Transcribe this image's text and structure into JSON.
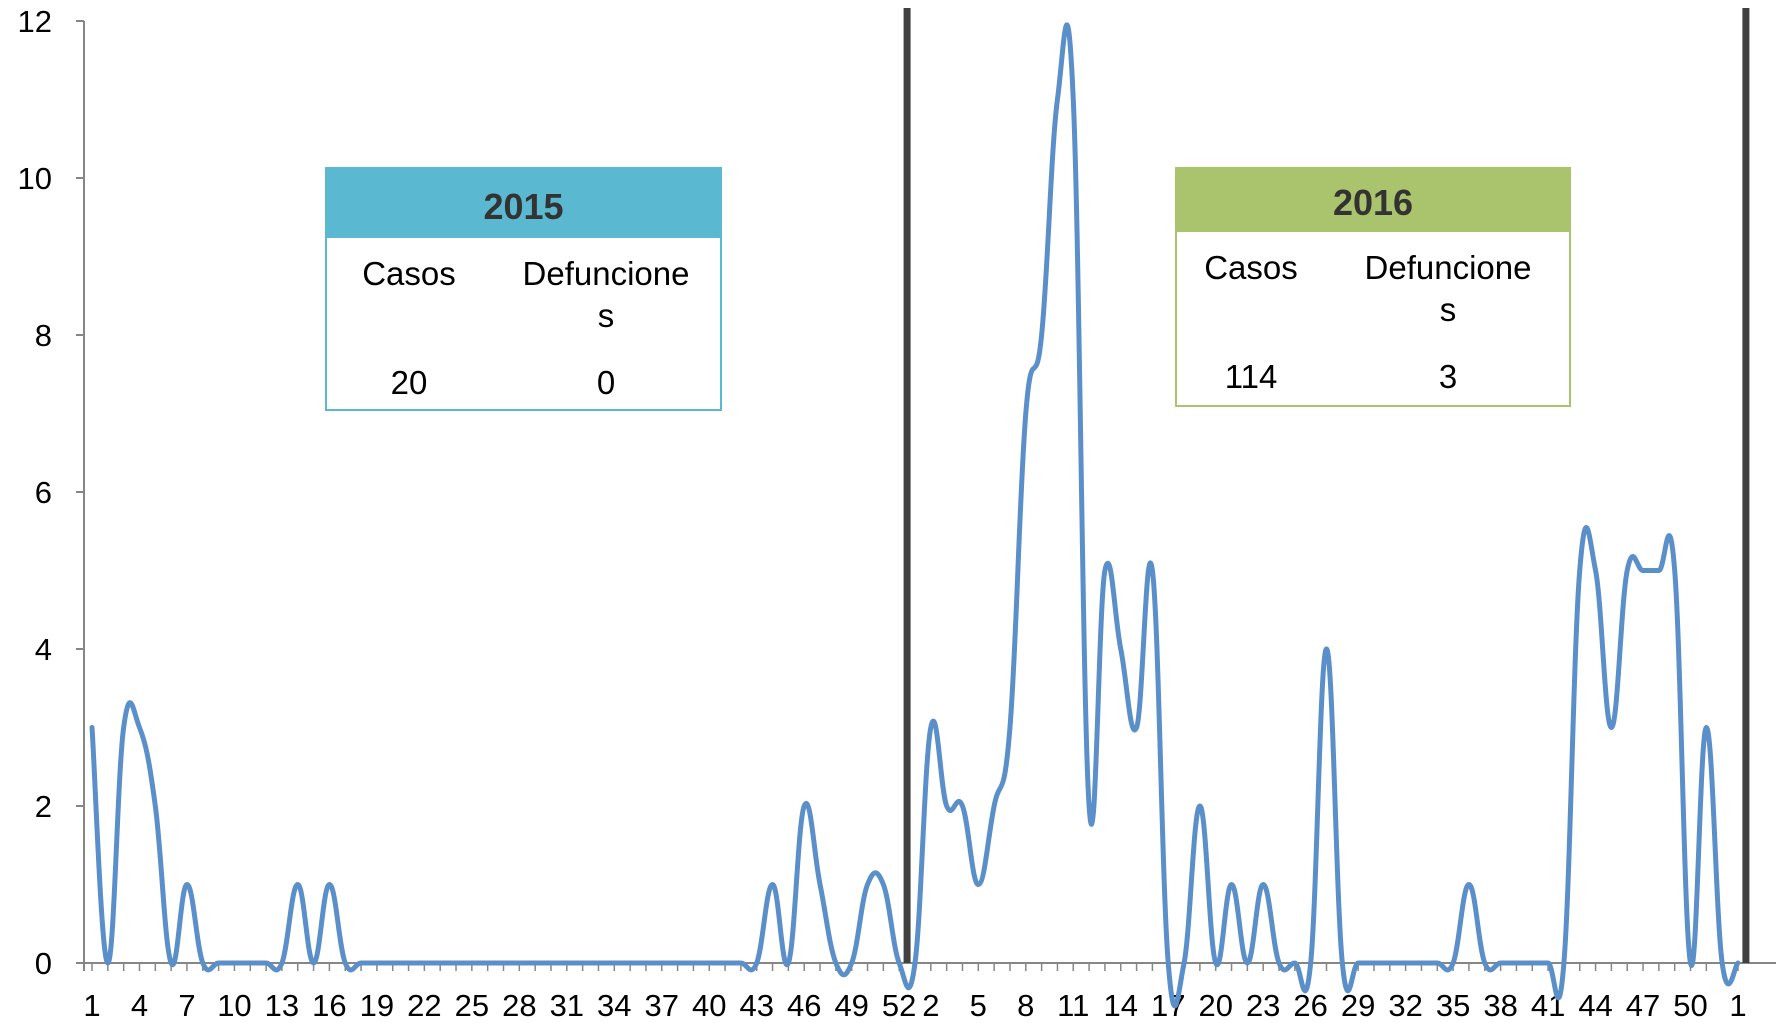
{
  "chart_data": {
    "type": "line",
    "smooth": true,
    "title": "",
    "xlabel": "",
    "ylabel": "",
    "ylim": [
      0,
      12
    ],
    "yticks": [
      0,
      2,
      4,
      6,
      8,
      10,
      12
    ],
    "grid": false,
    "line_color": "#5b8fc9",
    "x": [
      "1",
      "2",
      "3",
      "4",
      "5",
      "6",
      "7",
      "8",
      "9",
      "10",
      "11",
      "12",
      "13",
      "14",
      "15",
      "16",
      "17",
      "18",
      "19",
      "20",
      "21",
      "22",
      "23",
      "24",
      "25",
      "26",
      "27",
      "28",
      "29",
      "30",
      "31",
      "32",
      "33",
      "34",
      "35",
      "36",
      "37",
      "38",
      "39",
      "40",
      "41",
      "42",
      "43",
      "44",
      "45",
      "46",
      "47",
      "48",
      "49",
      "50",
      "51",
      "52",
      "1",
      "2",
      "3",
      "4",
      "5",
      "6",
      "7",
      "8",
      "9",
      "10",
      "11",
      "12",
      "13",
      "14",
      "15",
      "16",
      "17",
      "18",
      "19",
      "20",
      "21",
      "22",
      "23",
      "24",
      "25",
      "26",
      "27",
      "28",
      "29",
      "30",
      "31",
      "32",
      "33",
      "34",
      "35",
      "36",
      "37",
      "38",
      "39",
      "40",
      "41",
      "42",
      "43",
      "44",
      "45",
      "46",
      "47",
      "48",
      "49",
      "50",
      "51",
      "52",
      "1"
    ],
    "x_tick_labels": [
      "1",
      "4",
      "7",
      "10",
      "13",
      "16",
      "19",
      "22",
      "25",
      "28",
      "31",
      "34",
      "37",
      "40",
      "43",
      "46",
      "49",
      "52",
      "2",
      "5",
      "8",
      "11",
      "14",
      "17",
      "20",
      "23",
      "26",
      "29",
      "32",
      "35",
      "38",
      "41",
      "44",
      "47",
      "50",
      "1"
    ],
    "x_tick_label_indices": [
      0,
      3,
      6,
      9,
      12,
      15,
      18,
      21,
      24,
      27,
      30,
      33,
      36,
      39,
      42,
      45,
      48,
      51,
      53,
      56,
      59,
      62,
      65,
      68,
      71,
      74,
      77,
      80,
      83,
      86,
      89,
      92,
      95,
      98,
      101,
      104
    ],
    "series": [
      {
        "values": [
          3,
          0,
          3,
          3,
          2,
          0,
          1,
          0,
          0,
          0,
          0,
          0,
          0,
          1,
          0,
          1,
          0,
          0,
          0,
          0,
          0,
          0,
          0,
          0,
          0,
          0,
          0,
          0,
          0,
          0,
          0,
          0,
          0,
          0,
          0,
          0,
          0,
          0,
          0,
          0,
          0,
          0,
          0,
          1,
          0,
          2,
          1,
          0,
          0,
          1,
          1,
          0,
          0,
          3,
          2,
          2,
          1,
          2,
          3,
          7,
          8,
          11,
          11,
          2,
          5,
          4,
          3,
          5,
          0,
          0,
          2,
          0,
          1,
          0,
          1,
          0,
          0,
          0,
          4,
          0,
          0,
          0,
          0,
          0,
          0,
          0,
          0,
          1,
          0,
          0,
          0,
          0,
          0,
          0,
          5,
          5,
          3,
          5,
          5,
          5,
          5,
          0,
          3,
          0,
          0
        ]
      }
    ],
    "separators_at_x_index": [
      52,
      105
    ],
    "separator_color": "#404040",
    "annotations": [
      {
        "title": "2015",
        "header_color": "#5bb8d1",
        "border_color": "#5bb8d1",
        "col1_label": "Casos",
        "col2_label_line1": "Defuncione",
        "col2_label_line2": "s",
        "col1_value": "20",
        "col2_value": "0"
      },
      {
        "title": "2016",
        "header_color": "#a9c46c",
        "border_color": "#a9c46c",
        "col1_label": "Casos",
        "col2_label_line1": "Defuncione",
        "col2_label_line2": "s",
        "col1_value": "114",
        "col2_value": "3"
      }
    ]
  }
}
